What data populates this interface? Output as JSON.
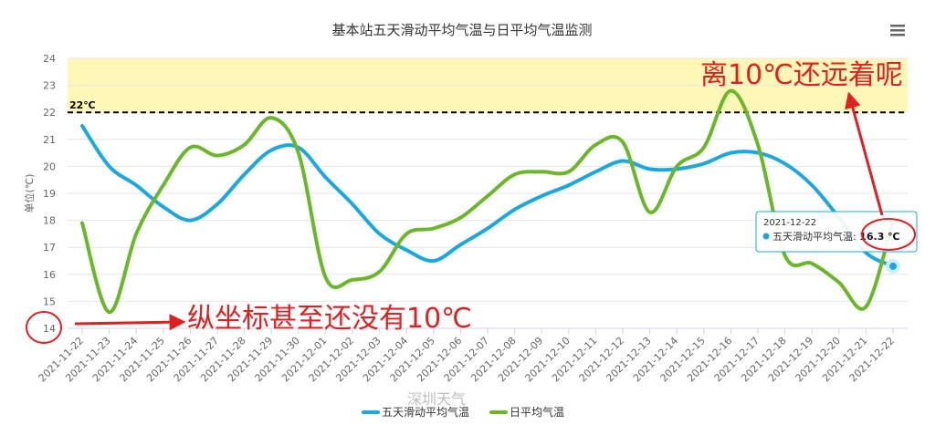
{
  "chart_data": {
    "type": "line",
    "title": "基本站五天滑动平均气温与日平均气温监测",
    "ylabel": "单位(℃)",
    "ylim": [
      14,
      24
    ],
    "yticks": [
      14,
      15,
      16,
      17,
      18,
      19,
      20,
      21,
      22,
      23,
      24
    ],
    "categories": [
      "2021-11-22",
      "2021-11-23",
      "2021-11-24",
      "2021-11-25",
      "2021-11-26",
      "2021-11-27",
      "2021-11-28",
      "2021-11-29",
      "2021-11-30",
      "2021-12-01",
      "2021-12-02",
      "2021-12-03",
      "2021-12-04",
      "2021-12-05",
      "2021-12-06",
      "2021-12-07",
      "2021-12-08",
      "2021-12-09",
      "2021-12-10",
      "2021-12-11",
      "2021-12-12",
      "2021-12-13",
      "2021-12-14",
      "2021-12-15",
      "2021-12-16",
      "2021-12-17",
      "2021-12-18",
      "2021-12-19",
      "2021-12-20",
      "2021-12-21",
      "2021-12-22"
    ],
    "series": [
      {
        "name": "五天滑动平均气温",
        "color": "#1ba8e0",
        "values": [
          21.5,
          20.0,
          19.3,
          18.5,
          18.0,
          18.6,
          19.7,
          20.6,
          20.7,
          19.6,
          18.6,
          17.5,
          16.9,
          16.5,
          17.1,
          17.7,
          18.4,
          18.9,
          19.3,
          19.8,
          20.2,
          19.9,
          19.9,
          20.1,
          20.5,
          20.5,
          20.1,
          19.3,
          18.1,
          16.8,
          16.3
        ]
      },
      {
        "name": "日平均气温",
        "color": "#6ab82a",
        "values": [
          17.9,
          14.6,
          17.5,
          19.3,
          20.7,
          20.4,
          20.8,
          21.8,
          20.5,
          15.9,
          15.8,
          16.1,
          17.5,
          17.7,
          18.1,
          18.9,
          19.7,
          19.8,
          19.8,
          20.8,
          20.9,
          18.3,
          20.0,
          20.7,
          22.8,
          20.8,
          16.7,
          16.4,
          15.7,
          14.8,
          18.0
        ]
      }
    ],
    "threshold_band": {
      "from": 22,
      "to": 24,
      "color": "#fff7b8"
    },
    "reference_line": {
      "value": 22,
      "label": "22℃"
    },
    "grid": true,
    "legend_position": "bottom-center",
    "tooltip": {
      "date": "2021-12-22",
      "series": "五天滑动平均气温",
      "value": "16.3 ℃"
    },
    "annotations": {
      "top": "离10℃还远着呢",
      "bottom": "纵坐标甚至还没有10℃"
    },
    "watermark": "深圳天气"
  },
  "menu_icon": "hamburger-menu-icon"
}
